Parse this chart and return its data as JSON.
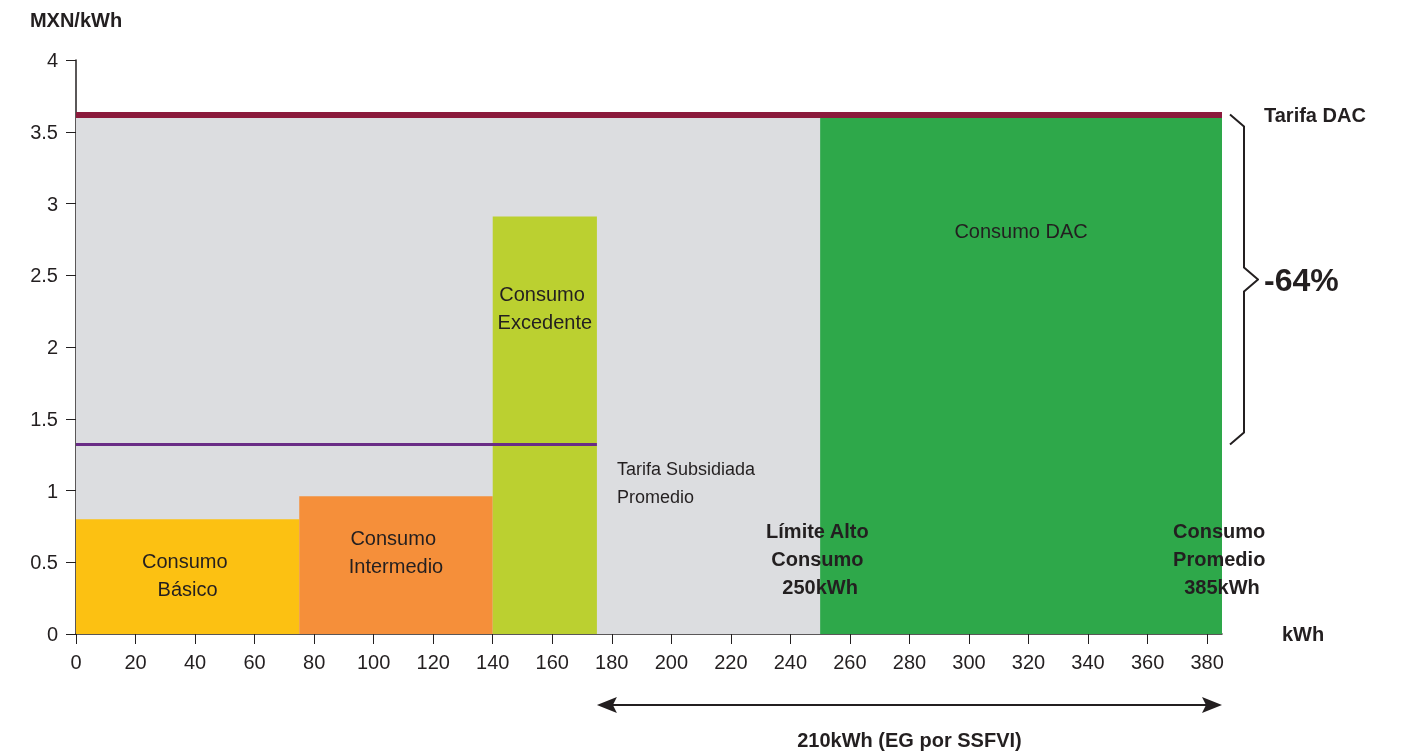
{
  "chart_data": {
    "type": "histogram",
    "xlabel": "kWh",
    "ylabel": "MXN/kWh",
    "bins": [
      0,
      75,
      140,
      175,
      250,
      385
    ],
    "values": [
      0.8,
      0.96,
      2.91,
      null,
      3.6
    ],
    "colors": [
      "#fcc112",
      "#f58f3a",
      "#bbd030",
      null,
      "#2ea84a"
    ],
    "series": [
      {
        "type": "line",
        "name": "Tarifa Subsidiada Promedio",
        "color": "#6a2c86",
        "x": [
          0,
          175
        ],
        "values": [
          1.32,
          1.32
        ],
        "marker": "none"
      }
    ],
    "xlim": [
      0,
      385
    ],
    "xticks": [
      0,
      20,
      40,
      60,
      80,
      100,
      120,
      140,
      160,
      180,
      200,
      220,
      240,
      260,
      280,
      300,
      320,
      340,
      360,
      380
    ],
    "ylim": [
      0,
      4
    ],
    "yticks": [
      0,
      0.5,
      1,
      1.5,
      2,
      2.5,
      3,
      3.5,
      4
    ],
    "grid": false,
    "legend": false,
    "bands": [
      {
        "axis": "y",
        "from": 0,
        "to": 3.62,
        "color": "#dcdde0"
      }
    ],
    "ref_lines": [
      {
        "axis": "y",
        "value": 3.62,
        "label": "Tarifa DAC",
        "color": "#8b1a3c"
      }
    ],
    "annotations": [
      "Consumo Básico",
      "Consumo Intermedio",
      "Consumo Excedente",
      "Consumo DAC",
      {
        "text": "Límite Alto Consumo 250kWh",
        "x": 250,
        "y": 0.52
      },
      {
        "text": "Consumo Promedio 385kWh",
        "x": 385,
        "y": 0.52
      },
      "-64%",
      "210kWh (EG por SSFVI)"
    ]
  }
}
